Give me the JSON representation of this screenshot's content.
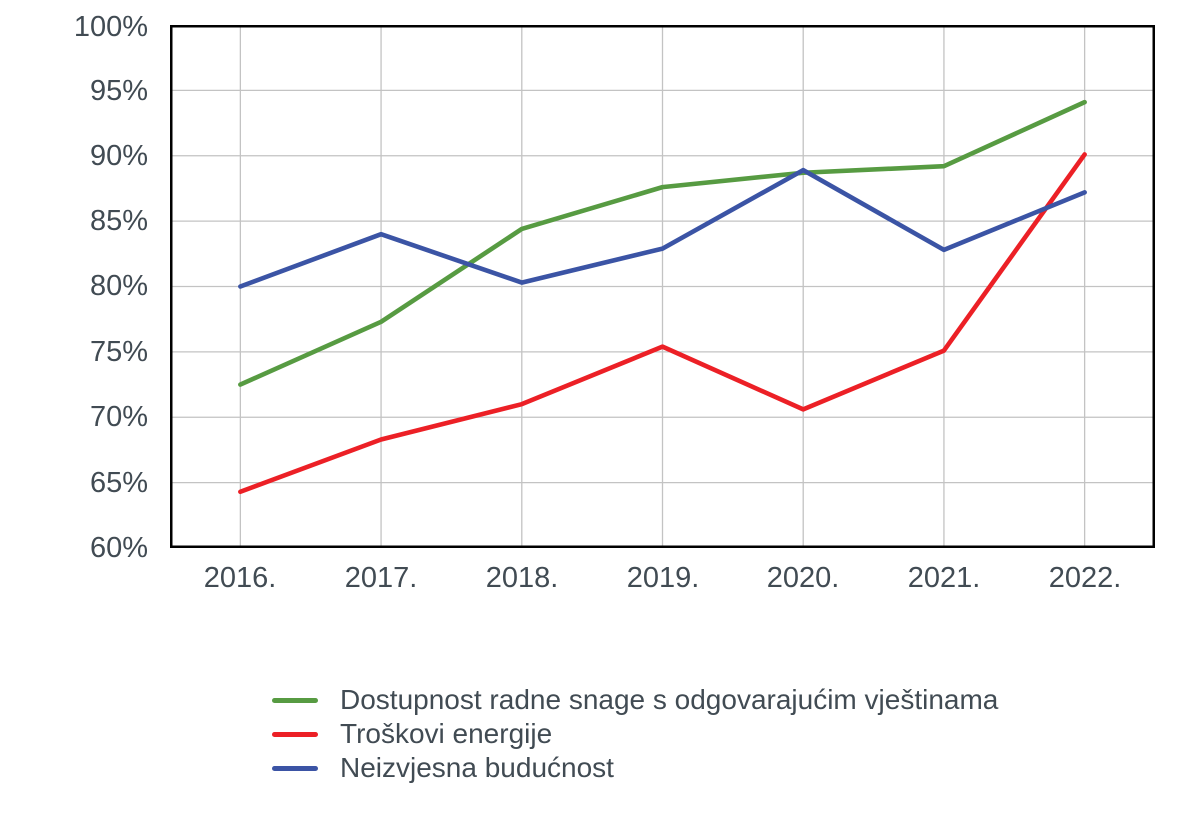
{
  "colors": {
    "background": "#FFFFFF",
    "text": "#414B53",
    "grid": "#C3C3C3",
    "border": "#000000"
  },
  "chart_data": {
    "type": "line",
    "title": "",
    "xlabel": "",
    "ylabel": "",
    "categories": [
      "2016.",
      "2017.",
      "2018.",
      "2019.",
      "2020.",
      "2021.",
      "2022."
    ],
    "ylim": [
      60,
      100
    ],
    "ygrid_step": 5,
    "grid": true,
    "legend_position": "bottom-left",
    "ytick_labels": [
      "100%",
      "95%",
      "90%",
      "85%",
      "80%",
      "75%",
      "70%",
      "65%",
      "60%"
    ],
    "series": [
      {
        "name": "Dostupnost radne snage s odgovarajućim vještinama",
        "color": "#579B42",
        "values": [
          72.5,
          77.3,
          84.4,
          87.6,
          88.7,
          89.2,
          94.1
        ]
      },
      {
        "name": "Troškovi energije",
        "color": "#EC2026",
        "values": [
          64.3,
          68.3,
          71.0,
          75.4,
          70.6,
          75.1,
          90.1
        ]
      },
      {
        "name": "Neizvjesna budućnost",
        "color": "#3B54A5",
        "values": [
          80.0,
          84.0,
          80.3,
          82.9,
          88.9,
          82.8,
          87.2
        ]
      }
    ]
  }
}
